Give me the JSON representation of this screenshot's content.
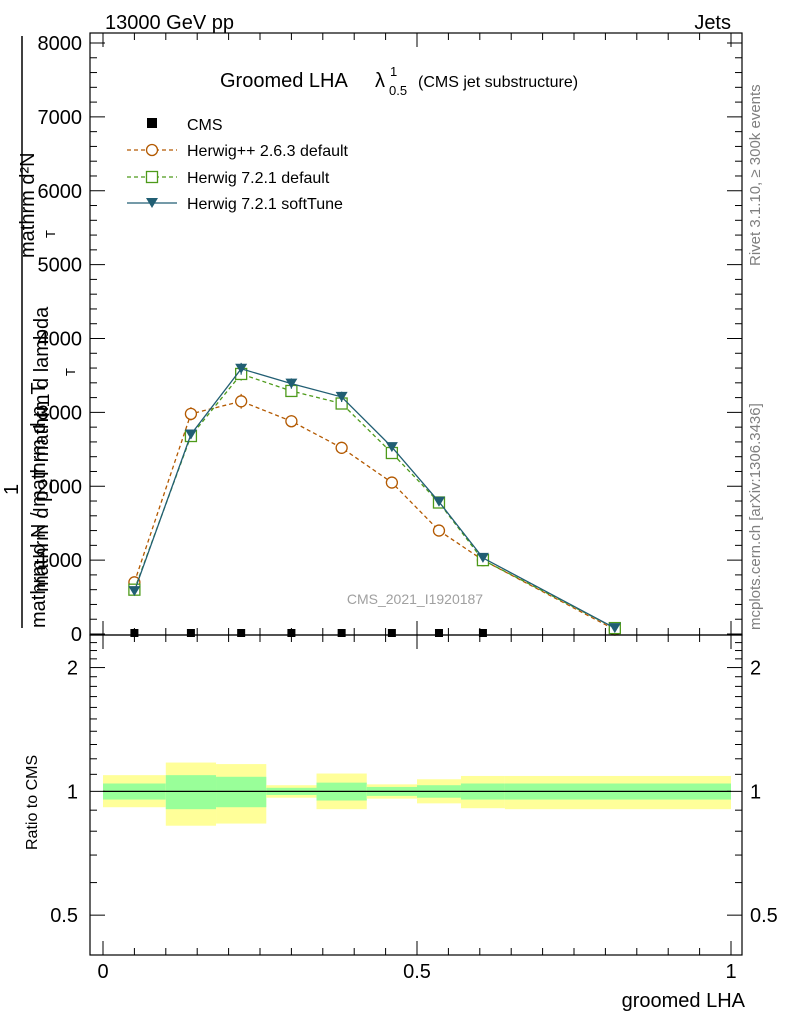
{
  "header": {
    "left": "13000 GeV pp",
    "right": "Jets"
  },
  "side_text": {
    "rivet": "Rivet 3.1.10, ≥ 300k events",
    "mcplots": "mcplots.cern.ch [arXiv:1306.3436]"
  },
  "chart_data": [
    {
      "type": "line",
      "title_main": "Groomed LHA",
      "title_symbol": "λ",
      "title_sup": "1",
      "title_sub": "0.5",
      "title_note": "(CMS jet substructure)",
      "ylabel_numer": "mathrm d²N",
      "ylabel_denom": "mathrm d p_T mathrm d lambda",
      "ylabel_one": "1",
      "ylabel_norm": "mathrm d N / mathrm d p_T",
      "ylabel_t1": "T",
      "ylabel_t2": "T",
      "ylim": [
        0,
        8000
      ],
      "yticks": [
        {
          "v": 0,
          "label": "0"
        },
        {
          "v": 1000,
          "label": "1000"
        },
        {
          "v": 2000,
          "label": "2000"
        },
        {
          "v": 3000,
          "label": "3000"
        },
        {
          "v": 4000,
          "label": "4000"
        },
        {
          "v": 5000,
          "label": "5000"
        },
        {
          "v": 6000,
          "label": "6000"
        },
        {
          "v": 7000,
          "label": "7000"
        },
        {
          "v": 8000,
          "label": "8000"
        }
      ],
      "xlim": [
        0,
        1
      ],
      "watermark": "CMS_2021_I1920187",
      "legend_position": "top-left",
      "series": [
        {
          "name": "CMS",
          "style": "data",
          "color": "#000000",
          "x": [
            0.05,
            0.14,
            0.22,
            0.3,
            0.38,
            0.46,
            0.535,
            0.605
          ],
          "y": [
            0,
            0,
            0,
            0,
            0,
            0,
            0,
            0
          ]
        },
        {
          "name": "Herwig++ 2.6.3 default",
          "style": "circle",
          "dash": true,
          "color": "#b35900",
          "x": [
            0.05,
            0.14,
            0.22,
            0.3,
            0.38,
            0.46,
            0.535,
            0.605,
            0.815
          ],
          "y": [
            700,
            2980,
            3150,
            2880,
            2520,
            2050,
            1400,
            1000,
            60
          ],
          "err": [
            50,
            90,
            100,
            80,
            80,
            60,
            50,
            30,
            10
          ]
        },
        {
          "name": "Herwig 7.2.1 default",
          "style": "square",
          "dash": true,
          "color": "#4d9a1a",
          "x": [
            0.05,
            0.14,
            0.22,
            0.3,
            0.38,
            0.46,
            0.535,
            0.605,
            0.815
          ],
          "y": [
            600,
            2680,
            3520,
            3290,
            3120,
            2450,
            1780,
            1000,
            80
          ],
          "err": [
            40,
            70,
            90,
            80,
            80,
            60,
            50,
            30,
            10
          ]
        },
        {
          "name": "Herwig 7.2.1 softTune",
          "style": "triangle",
          "dash": false,
          "color": "#215e73",
          "x": [
            0.05,
            0.14,
            0.22,
            0.3,
            0.38,
            0.46,
            0.535,
            0.605,
            0.815
          ],
          "y": [
            580,
            2700,
            3590,
            3390,
            3210,
            2530,
            1790,
            1030,
            80
          ],
          "err": [
            30,
            60,
            80,
            70,
            70,
            50,
            40,
            30,
            10
          ]
        }
      ]
    },
    {
      "type": "area",
      "ylabel": "Ratio to CMS",
      "xlabel": "groomed LHA",
      "ylim": [
        0.4,
        2.4
      ],
      "log_y": true,
      "xlim": [
        0,
        1
      ],
      "xticks": [
        {
          "v": 0,
          "label": "0"
        },
        {
          "v": 0.5,
          "label": "0.5"
        },
        {
          "v": 1,
          "label": "1"
        }
      ],
      "yticks": [
        {
          "v": 0.5,
          "label": "0.5"
        },
        {
          "v": 1,
          "label": "1"
        },
        {
          "v": 2,
          "label": "2"
        }
      ],
      "reference_line": 1,
      "band_colors": {
        "outer": "#ffff99",
        "inner": "#99ff99"
      },
      "bins": [
        {
          "lo": 0.0,
          "hi": 0.1,
          "outer": [
            0.915,
            1.095
          ],
          "inner": [
            0.955,
            1.045
          ]
        },
        {
          "lo": 0.1,
          "hi": 0.18,
          "outer": [
            0.825,
            1.175
          ],
          "inner": [
            0.905,
            1.095
          ]
        },
        {
          "lo": 0.18,
          "hi": 0.26,
          "outer": [
            0.835,
            1.165
          ],
          "inner": [
            0.915,
            1.085
          ]
        },
        {
          "lo": 0.26,
          "hi": 0.34,
          "outer": [
            0.965,
            1.035
          ],
          "inner": [
            0.98,
            1.02
          ]
        },
        {
          "lo": 0.34,
          "hi": 0.42,
          "outer": [
            0.905,
            1.105
          ],
          "inner": [
            0.95,
            1.05
          ]
        },
        {
          "lo": 0.42,
          "hi": 0.5,
          "outer": [
            0.96,
            1.04
          ],
          "inner": [
            0.975,
            1.025
          ]
        },
        {
          "lo": 0.5,
          "hi": 0.57,
          "outer": [
            0.935,
            1.07
          ],
          "inner": [
            0.965,
            1.035
          ]
        },
        {
          "lo": 0.57,
          "hi": 0.64,
          "outer": [
            0.91,
            1.09
          ],
          "inner": [
            0.955,
            1.045
          ]
        },
        {
          "lo": 0.64,
          "hi": 1.0,
          "outer": [
            0.905,
            1.09
          ],
          "inner": [
            0.955,
            1.045
          ]
        }
      ]
    }
  ]
}
